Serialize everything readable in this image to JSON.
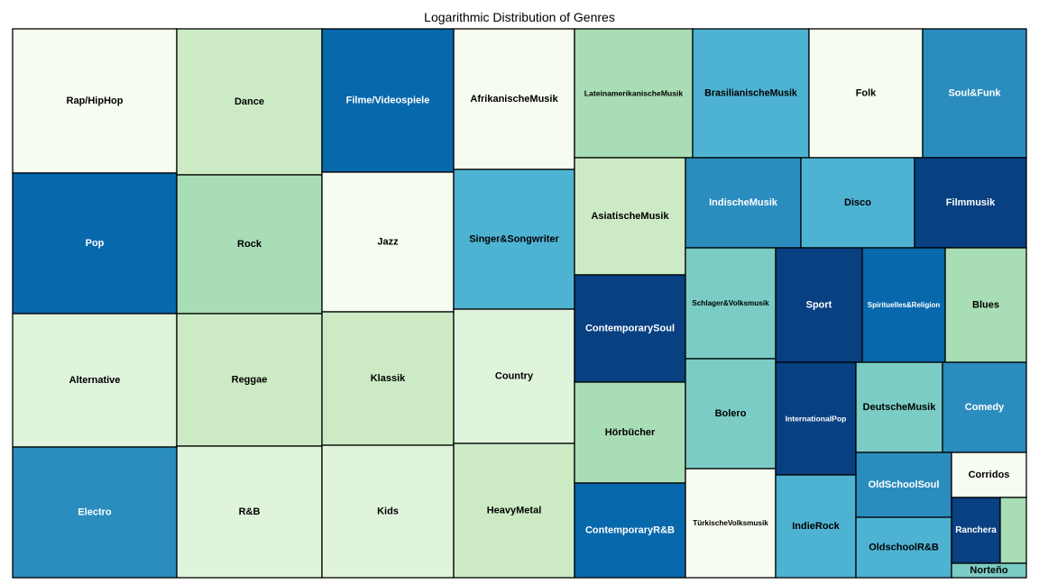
{
  "chart_data": {
    "type": "treemap",
    "title": "Logarithmic Distribution of Genres",
    "palette": [
      "#f7fcf0",
      "#e0f3db",
      "#ccebc5",
      "#a8ddb5",
      "#7bccc4",
      "#4eb3d3",
      "#2b8cbe",
      "#0868ac",
      "#084081"
    ],
    "cells": [
      {
        "label": "Rap/HipHop",
        "color": "#f7fcf0"
      },
      {
        "label": "Pop",
        "color": "#0868ac"
      },
      {
        "label": "Alternative",
        "color": "#e0f3db"
      },
      {
        "label": "Electro",
        "color": "#2b8cbe"
      },
      {
        "label": "Dance",
        "color": "#ccebc5"
      },
      {
        "label": "Rock",
        "color": "#a8ddb5"
      },
      {
        "label": "Reggae",
        "color": "#ccebc5"
      },
      {
        "label": "R&B",
        "color": "#e0f3db"
      },
      {
        "label": "Filme/Videospiele",
        "color": "#0868ac"
      },
      {
        "label": "Jazz",
        "color": "#f7fcf0"
      },
      {
        "label": "Klassik",
        "color": "#ccebc5"
      },
      {
        "label": "Kids",
        "color": "#e0f3db"
      },
      {
        "label": "AfrikanischeMusik",
        "color": "#f7fcf0"
      },
      {
        "label": "Singer&Songwriter",
        "color": "#4eb3d3"
      },
      {
        "label": "Country",
        "color": "#e0f3db"
      },
      {
        "label": "HeavyMetal",
        "color": "#ccebc5"
      },
      {
        "label": "LateinamerikanischeMusik",
        "color": "#a8ddb5"
      },
      {
        "label": "BrasilianischeMusik",
        "color": "#4eb3d3"
      },
      {
        "label": "Folk",
        "color": "#f7fcf0"
      },
      {
        "label": "Soul&Funk",
        "color": "#2b8cbe"
      },
      {
        "label": "AsiatischeMusik",
        "color": "#ccebc5"
      },
      {
        "label": "ContemporarySoul",
        "color": "#084081"
      },
      {
        "label": "Hörbücher",
        "color": "#a8ddb5"
      },
      {
        "label": "ContemporaryR&B",
        "color": "#0868ac"
      },
      {
        "label": "IndischeMusik",
        "color": "#2b8cbe"
      },
      {
        "label": "Disco",
        "color": "#4eb3d3"
      },
      {
        "label": "Filmmusik",
        "color": "#084081"
      },
      {
        "label": "Schlager&Volksmusik",
        "color": "#7bccc4"
      },
      {
        "label": "Bolero",
        "color": "#7bccc4"
      },
      {
        "label": "TürkischeVolksmusik",
        "color": "#f7fcf0"
      },
      {
        "label": "Sport",
        "color": "#084081"
      },
      {
        "label": "InternationalPop",
        "color": "#084081"
      },
      {
        "label": "IndieRock",
        "color": "#4eb3d3"
      },
      {
        "label": "Spirituelles&Religion",
        "color": "#0868ac"
      },
      {
        "label": "Blues",
        "color": "#a8ddb5"
      },
      {
        "label": "DeutscheMusik",
        "color": "#7bccc4"
      },
      {
        "label": "Comedy",
        "color": "#2b8cbe"
      },
      {
        "label": "OldSchoolSoul",
        "color": "#2b8cbe"
      },
      {
        "label": "OldschoolR&B",
        "color": "#4eb3d3"
      },
      {
        "label": "Corridos",
        "color": "#f7fcf0"
      },
      {
        "label": "Ranchera",
        "color": "#084081"
      },
      {
        "label": "",
        "color": "#a8ddb5"
      },
      {
        "label": "Norteño",
        "color": "#7bccc4"
      }
    ]
  }
}
